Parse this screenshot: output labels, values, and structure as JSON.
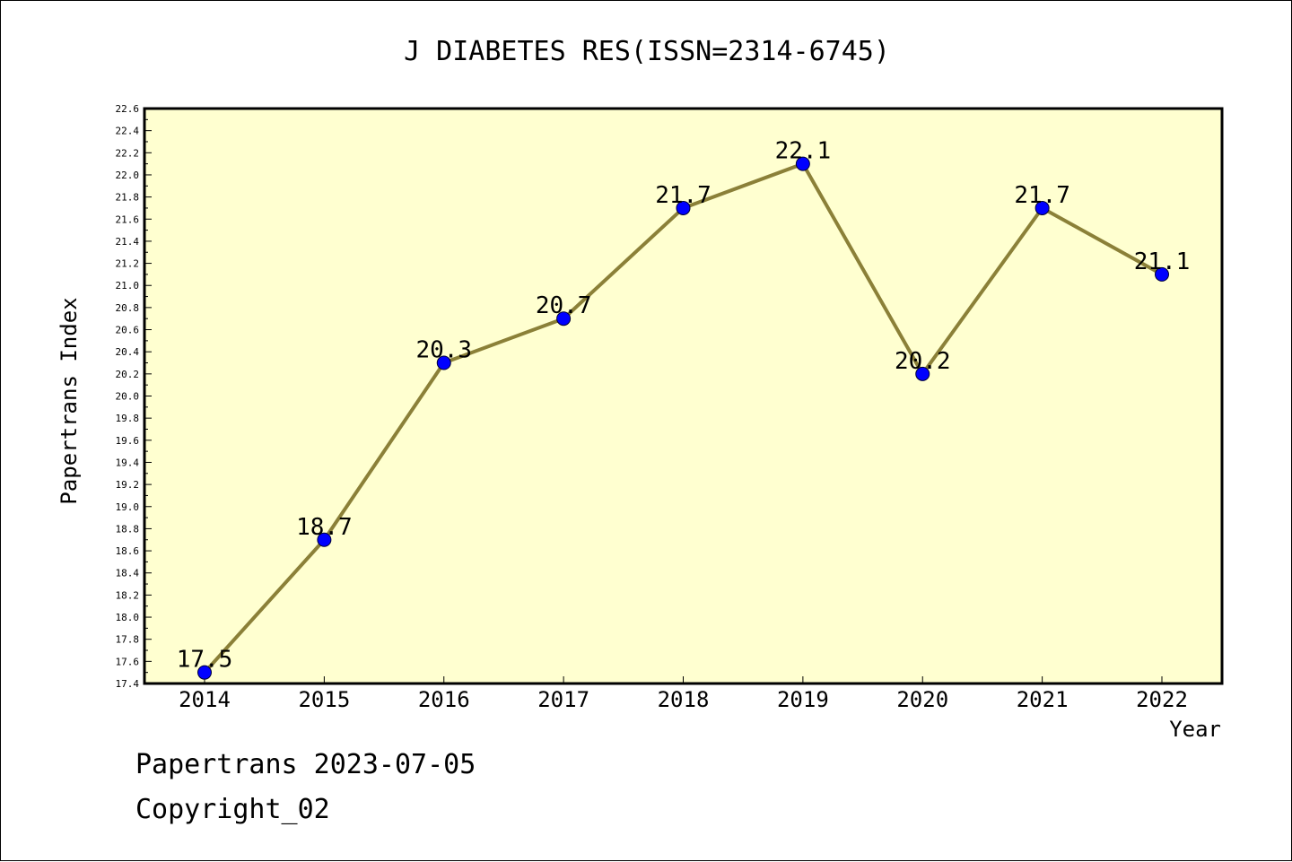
{
  "chart_data": {
    "type": "line",
    "title": "J DIABETES RES(ISSN=2314-6745)",
    "xlabel": "Year",
    "ylabel": "Papertrans Index",
    "categories": [
      "2014",
      "2015",
      "2016",
      "2017",
      "2018",
      "2019",
      "2020",
      "2021",
      "2022"
    ],
    "values": [
      17.5,
      18.7,
      20.3,
      20.7,
      21.7,
      22.1,
      20.2,
      21.7,
      21.1
    ],
    "data_labels": [
      "17.5",
      "18.7",
      "20.3",
      "20.7",
      "21.7",
      "22.1",
      "20.2",
      "21.7",
      "21.1"
    ],
    "ylim": [
      17.4,
      22.6
    ],
    "yticks": [
      "17.4",
      "17.6",
      "17.8",
      "18.0",
      "18.2",
      "18.4",
      "18.6",
      "18.8",
      "19.0",
      "19.2",
      "19.4",
      "19.6",
      "19.8",
      "20.0",
      "20.2",
      "20.4",
      "20.6",
      "20.8",
      "21.0",
      "21.2",
      "21.4",
      "21.6",
      "21.8",
      "22.0",
      "22.2",
      "22.4",
      "22.6"
    ],
    "grid": false,
    "colors": {
      "plot_background": "#ffffd0",
      "line": "#8b8038",
      "marker": "#0000ff"
    }
  },
  "footer": {
    "line1": "Papertrans 2023-07-05",
    "line2": "Copyright_02"
  }
}
